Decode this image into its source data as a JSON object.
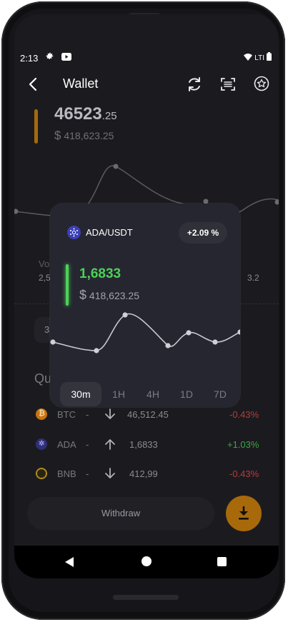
{
  "status_bar": {
    "time": "2:13",
    "signal": "LTI"
  },
  "header": {
    "title": "Wallet"
  },
  "balance": {
    "amount_main": "46523",
    "amount_decimals": ".25",
    "usd_prefix": "$",
    "usd_value": "418,623.25"
  },
  "bg_labels": {
    "vol_label": "Vo",
    "vol_value_left": "2,5",
    "vol_value_right": "3.2",
    "field_hint": "3"
  },
  "quotes": {
    "title_partial": "Qu",
    "rows": [
      {
        "symbol": "BTC",
        "dash": "-",
        "direction": "down",
        "price": "46,512.45",
        "change": "-0.43%",
        "change_color": "#e24b4b",
        "icon_color": "#f7931a"
      },
      {
        "symbol": "ADA",
        "dash": "-",
        "direction": "up",
        "price": "1,6833",
        "change": "+1.03%",
        "change_color": "#4cd157",
        "icon_color": "#3a3fb8"
      },
      {
        "symbol": "BNB",
        "dash": "-",
        "direction": "down",
        "price": "412,99",
        "change": "-0.43%",
        "change_color": "#e24b4b",
        "icon_color": "#f3ba2f"
      }
    ]
  },
  "actions": {
    "withdraw": "Withdraw"
  },
  "popup": {
    "pair": "ADA/USDT",
    "change_badge": "+2.09 %",
    "price": "1,6833",
    "usd_prefix": "$",
    "usd_value": "418,623.25",
    "tabs": [
      "30m",
      "1H",
      "4H",
      "1D",
      "7D"
    ],
    "active_tab": "30m"
  },
  "colors": {
    "accent": "#f0a010",
    "green": "#4cd157",
    "red": "#e24b4b"
  },
  "icons": {
    "back": "chevron-left-icon",
    "refresh": "refresh-icon",
    "scan": "scan-icon",
    "star": "star-circle-icon",
    "download": "download-icon"
  }
}
